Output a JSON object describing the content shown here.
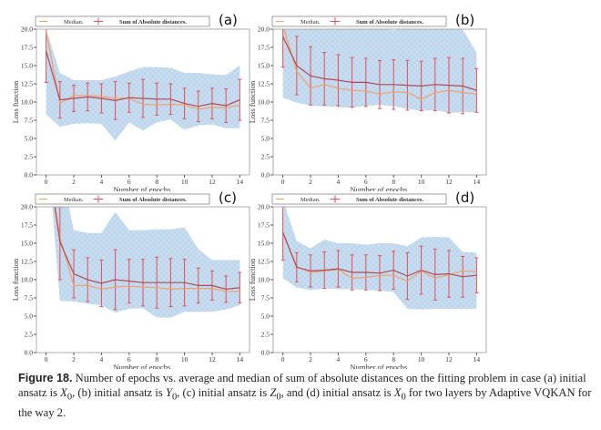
{
  "legend": {
    "median": "Median.",
    "mean": "Sum of Absolute distances."
  },
  "colors": {
    "mean": "#b04a52",
    "errorbar": "#e0505a",
    "median": "#f0a070",
    "band": "#c8ddf0",
    "hatch": "#a9c6e3"
  },
  "caption": {
    "label": "Figure 18.",
    "text_1": " Number of epochs vs. average and median of sum of absolute distances on the fitting problem in case (a) initial ansatz is ",
    "var_a": "X",
    "text_2": ", (b) initial ansatz is ",
    "var_b": "Y",
    "text_3": ", (c) initial ansatz is ",
    "var_c": "Z",
    "text_4": ", and (d) initial ansatz is ",
    "var_d": "X",
    "text_5": " for two layers by Adaptive VQKAN for the way 2.",
    "subscript": "0"
  },
  "chart_data": [
    {
      "type": "line",
      "panel_label": "(a)",
      "xlabel": "Number of epochs.",
      "ylabel": "Loss function",
      "xlim": [
        -0.7,
        14.7
      ],
      "ylim": [
        0,
        20
      ],
      "xticks": [
        0,
        2,
        4,
        6,
        8,
        10,
        12,
        14
      ],
      "yticks": [
        "0.0",
        "2.5",
        "5.0",
        "7.5",
        "10.0",
        "12.5",
        "15.0",
        "17.5",
        "20.0"
      ],
      "x": [
        0,
        1,
        2,
        3,
        4,
        5,
        6,
        7,
        8,
        9,
        10,
        11,
        12,
        13,
        14
      ],
      "mean": [
        17,
        10.3,
        10.5,
        10.7,
        10.5,
        10.2,
        10.6,
        10.5,
        10.4,
        10.4,
        9.8,
        9.4,
        9.8,
        9.5,
        10.3
      ],
      "error": [
        4.3,
        2.5,
        1.8,
        1.9,
        2.0,
        2.6,
        2.0,
        2.6,
        2.2,
        2.1,
        2.1,
        2.1,
        2.1,
        2.3,
        2.8
      ],
      "median": [
        19.8,
        9.8,
        10.9,
        10.9,
        10.8,
        10.5,
        10.5,
        9.7,
        9.6,
        9.7,
        9.6,
        9.0,
        9.3,
        9.2,
        9.6
      ],
      "band_upper": [
        20,
        14,
        13,
        13,
        13,
        13.5,
        14.2,
        14.8,
        14.8,
        14.7,
        14,
        14,
        13.8,
        13.7,
        15
      ],
      "band_lower": [
        8.3,
        6.6,
        7,
        7.1,
        7,
        4.7,
        7.2,
        6.1,
        7.2,
        7.6,
        6.2,
        6.8,
        6.9,
        6.4,
        6.4
      ]
    },
    {
      "type": "line",
      "panel_label": "(b)",
      "xlabel": "Number of epochs.",
      "ylabel": "Loss function",
      "xlim": [
        -0.7,
        14.7
      ],
      "ylim": [
        0,
        20
      ],
      "xticks": [
        0,
        2,
        4,
        6,
        8,
        10,
        12,
        14
      ],
      "yticks": [
        "0.0",
        "2.5",
        "5.0",
        "7.5",
        "10.0",
        "12.5",
        "15.0",
        "17.5",
        "20.0"
      ],
      "x": [
        0,
        1,
        2,
        3,
        4,
        5,
        6,
        7,
        8,
        9,
        10,
        11,
        12,
        13,
        14
      ],
      "mean": [
        19,
        15,
        13.6,
        13.2,
        13,
        12.7,
        12.7,
        12.4,
        12.4,
        12.3,
        12.2,
        12.4,
        12.3,
        12.2,
        11.6
      ],
      "error": [
        4.2,
        4,
        4,
        3.6,
        3.5,
        3.4,
        3.3,
        3.3,
        3.4,
        3.4,
        3.4,
        3.6,
        3.8,
        3.8,
        3
      ],
      "median": [
        20.5,
        14.2,
        11.9,
        12.4,
        11.9,
        11.6,
        11.5,
        11.1,
        11.4,
        11.3,
        10.4,
        11.3,
        11.6,
        11.3,
        11.1
      ],
      "band_upper": [
        21,
        21,
        21,
        21,
        21,
        21,
        21,
        20.5,
        19.8,
        20.5,
        21,
        21,
        21,
        20,
        16.8
      ],
      "band_lower": [
        10.6,
        9.9,
        9.5,
        9.4,
        9.3,
        9.2,
        9.5,
        9.6,
        9.4,
        9.1,
        8.8,
        8.9,
        8.5,
        8.6,
        8.6
      ]
    },
    {
      "type": "line",
      "panel_label": "(c)",
      "xlabel": "Number of epochs.",
      "ylabel": "Loss function",
      "xlim": [
        -0.7,
        14.7
      ],
      "ylim": [
        0,
        20
      ],
      "xticks": [
        0,
        2,
        4,
        6,
        8,
        10,
        12,
        14
      ],
      "yticks": [
        "0.0",
        "2.5",
        "5.0",
        "7.5",
        "10.0",
        "12.5",
        "15.0",
        "17.5",
        "20.0"
      ],
      "x": [
        0,
        1,
        2,
        3,
        4,
        5,
        6,
        7,
        8,
        9,
        10,
        11,
        12,
        13,
        14
      ],
      "mean": [
        28,
        15.2,
        10.8,
        10,
        9.5,
        10,
        9.8,
        9.6,
        9.6,
        9.6,
        9.6,
        9.2,
        9.2,
        8.7,
        8.9
      ],
      "error": [
        0,
        5.2,
        3.3,
        3,
        3.2,
        4.1,
        3,
        3.2,
        3.5,
        3.3,
        3.2,
        2.4,
        2,
        1.8,
        2.1
      ],
      "median": [
        28,
        15.8,
        9.2,
        9.2,
        8.7,
        9,
        9.1,
        9.0,
        8.9,
        8.7,
        8.8,
        8.8,
        8.8,
        8.4,
        8.4
      ],
      "band_upper": [
        30,
        26,
        16.8,
        16.4,
        16.4,
        19.3,
        16.8,
        16.8,
        16.9,
        16.9,
        17.2,
        14.2,
        12.7,
        12.7,
        12.7
      ],
      "band_lower": [
        30,
        7.1,
        7,
        6.7,
        6.5,
        5.5,
        6,
        6.1,
        4.8,
        4.8,
        5.6,
        5.6,
        5.6,
        5.9,
        6.5
      ]
    },
    {
      "type": "line",
      "panel_label": "(d)",
      "xlabel": "Number of epochs.",
      "ylabel": "Loss function",
      "xlim": [
        -0.7,
        14.7
      ],
      "ylim": [
        0,
        20
      ],
      "xticks": [
        0,
        2,
        4,
        6,
        8,
        10,
        12,
        14
      ],
      "yticks": [
        "0.0",
        "2.5",
        "5.0",
        "7.5",
        "10.0",
        "12.5",
        "15.0",
        "17.5",
        "20.0"
      ],
      "x": [
        0,
        1,
        2,
        3,
        4,
        5,
        6,
        7,
        8,
        9,
        10,
        11,
        12,
        13,
        14
      ],
      "mean": [
        16.5,
        11.7,
        11.2,
        11.3,
        11.5,
        11.0,
        11.0,
        10.9,
        11.3,
        10.5,
        11.3,
        10.7,
        10.8,
        10.4,
        10.6
      ],
      "error": [
        3.8,
        2,
        2.2,
        2.5,
        2.5,
        2.4,
        2.4,
        2.4,
        2.6,
        3.2,
        3.3,
        3.5,
        3.2,
        2.8,
        2.4
      ],
      "median": [
        16.5,
        11.8,
        11.0,
        11.2,
        11.4,
        10.2,
        10.3,
        10.6,
        10.6,
        9.8,
        11.2,
        10.2,
        10.7,
        11.2,
        11.1
      ],
      "band_upper": [
        21,
        15.3,
        14.3,
        15.5,
        15,
        15,
        14.8,
        15,
        15,
        14.6,
        15.8,
        15.9,
        15.8,
        13.8,
        13.7
      ],
      "band_lower": [
        10.2,
        8.9,
        8.6,
        8.8,
        8.7,
        8.7,
        8.6,
        8.5,
        8.3,
        6,
        5.9,
        6,
        6,
        6,
        6
      ]
    }
  ]
}
